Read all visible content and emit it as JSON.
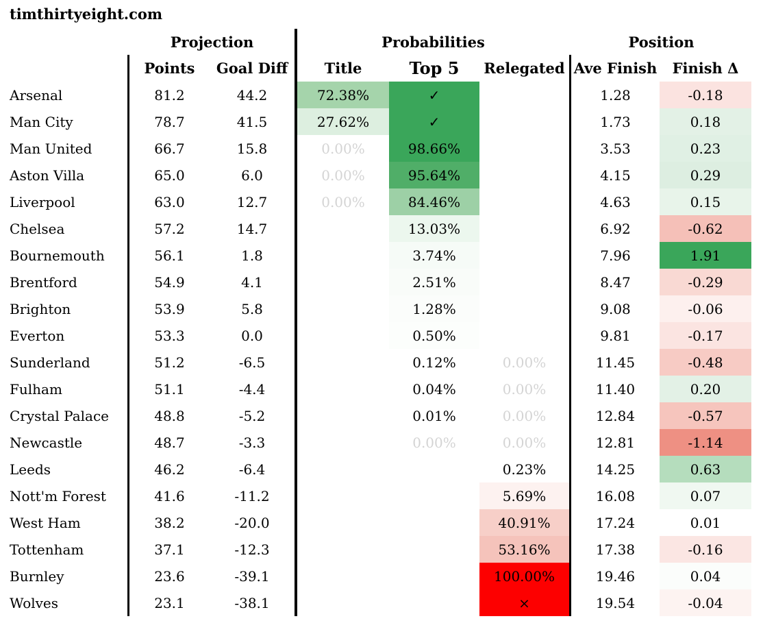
{
  "site_title": "timthirtyeight.com",
  "colors": {
    "strong_green": "#3aa65a",
    "strong_red": "#fd0000",
    "muted_zero_text": "#d4d4d4",
    "line_black": "#000000"
  },
  "chart_data": {
    "type": "table",
    "title": "timthirtyeight.com",
    "group_headers": [
      {
        "label": "Projection",
        "span": [
          "Points",
          "Goal Diff"
        ]
      },
      {
        "label": "Probabilities",
        "span": [
          "Title",
          "Top 5",
          "Relegated"
        ]
      },
      {
        "label": "Position",
        "span": [
          "Ave Finish",
          "Finish Δ"
        ]
      }
    ],
    "col_headers": [
      "Points",
      "Goal Diff",
      "Title",
      "Top 5",
      "Relegated",
      "Ave Finish",
      "Finish Δ"
    ],
    "rows": [
      {
        "team": "Arsenal",
        "cells": [
          {
            "col": "points",
            "text": "81.2"
          },
          {
            "col": "goal_diff",
            "text": "44.2"
          },
          {
            "col": "title",
            "text": "72.38%",
            "bg": "#a5d4ab"
          },
          {
            "col": "top5",
            "text": "✓",
            "bg": "#3aa65a"
          },
          {
            "col": "relegated",
            "text": ""
          },
          {
            "col": "ave_finish",
            "text": "1.28"
          },
          {
            "col": "finish_delta",
            "text": "-0.18",
            "bg": "#fbe3e0"
          }
        ]
      },
      {
        "team": "Man City",
        "cells": [
          {
            "col": "points",
            "text": "78.7"
          },
          {
            "col": "goal_diff",
            "text": "41.5"
          },
          {
            "col": "title",
            "text": "27.62%",
            "bg": "#ddefe0"
          },
          {
            "col": "top5",
            "text": "✓",
            "bg": "#3aa65a"
          },
          {
            "col": "relegated",
            "text": ""
          },
          {
            "col": "ave_finish",
            "text": "1.73"
          },
          {
            "col": "finish_delta",
            "text": "0.18",
            "bg": "#e3f1e6"
          }
        ]
      },
      {
        "team": "Man United",
        "cells": [
          {
            "col": "points",
            "text": "66.7"
          },
          {
            "col": "goal_diff",
            "text": "15.8"
          },
          {
            "col": "title",
            "text": "0.00%",
            "fg": "#d4d4d4"
          },
          {
            "col": "top5",
            "text": "98.66%",
            "bg": "#3aa65a"
          },
          {
            "col": "relegated",
            "text": ""
          },
          {
            "col": "ave_finish",
            "text": "3.53"
          },
          {
            "col": "finish_delta",
            "text": "0.23",
            "bg": "#e0f0e4"
          }
        ]
      },
      {
        "team": "Aston Villa",
        "cells": [
          {
            "col": "points",
            "text": "65.0"
          },
          {
            "col": "goal_diff",
            "text": "6.0"
          },
          {
            "col": "title",
            "text": "0.00%",
            "fg": "#d4d4d4"
          },
          {
            "col": "top5",
            "text": "95.64%",
            "bg": "#50ae68"
          },
          {
            "col": "relegated",
            "text": ""
          },
          {
            "col": "ave_finish",
            "text": "4.15"
          },
          {
            "col": "finish_delta",
            "text": "0.29",
            "bg": "#ddeee1"
          }
        ]
      },
      {
        "team": "Liverpool",
        "cells": [
          {
            "col": "points",
            "text": "63.0"
          },
          {
            "col": "goal_diff",
            "text": "12.7"
          },
          {
            "col": "title",
            "text": "0.00%",
            "fg": "#d4d4d4"
          },
          {
            "col": "top5",
            "text": "84.46%",
            "bg": "#9dd0a6"
          },
          {
            "col": "relegated",
            "text": ""
          },
          {
            "col": "ave_finish",
            "text": "4.63"
          },
          {
            "col": "finish_delta",
            "text": "0.15",
            "bg": "#e8f4ea"
          }
        ]
      },
      {
        "team": "Chelsea",
        "cells": [
          {
            "col": "points",
            "text": "57.2"
          },
          {
            "col": "goal_diff",
            "text": "14.7"
          },
          {
            "col": "title",
            "text": ""
          },
          {
            "col": "top5",
            "text": "13.03%",
            "bg": "#ecf7ee"
          },
          {
            "col": "relegated",
            "text": ""
          },
          {
            "col": "ave_finish",
            "text": "6.92"
          },
          {
            "col": "finish_delta",
            "text": "-0.62",
            "bg": "#f5c0b8"
          }
        ]
      },
      {
        "team": "Bournemouth",
        "cells": [
          {
            "col": "points",
            "text": "56.1"
          },
          {
            "col": "goal_diff",
            "text": "1.8"
          },
          {
            "col": "title",
            "text": ""
          },
          {
            "col": "top5",
            "text": "3.74%",
            "bg": "#f6fbf7"
          },
          {
            "col": "relegated",
            "text": ""
          },
          {
            "col": "ave_finish",
            "text": "7.96"
          },
          {
            "col": "finish_delta",
            "text": "1.91",
            "bg": "#3aa65a"
          }
        ]
      },
      {
        "team": "Brentford",
        "cells": [
          {
            "col": "points",
            "text": "54.9"
          },
          {
            "col": "goal_diff",
            "text": "4.1"
          },
          {
            "col": "title",
            "text": ""
          },
          {
            "col": "top5",
            "text": "2.51%",
            "bg": "#f9fcf9"
          },
          {
            "col": "relegated",
            "text": ""
          },
          {
            "col": "ave_finish",
            "text": "8.47"
          },
          {
            "col": "finish_delta",
            "text": "-0.29",
            "bg": "#f9d9d3"
          }
        ]
      },
      {
        "team": "Brighton",
        "cells": [
          {
            "col": "points",
            "text": "53.9"
          },
          {
            "col": "goal_diff",
            "text": "5.8"
          },
          {
            "col": "title",
            "text": ""
          },
          {
            "col": "top5",
            "text": "1.28%",
            "bg": "#fbfdfb"
          },
          {
            "col": "relegated",
            "text": ""
          },
          {
            "col": "ave_finish",
            "text": "9.08"
          },
          {
            "col": "finish_delta",
            "text": "-0.06",
            "bg": "#fdf0ee"
          }
        ]
      },
      {
        "team": "Everton",
        "cells": [
          {
            "col": "points",
            "text": "53.3"
          },
          {
            "col": "goal_diff",
            "text": "0.0"
          },
          {
            "col": "title",
            "text": ""
          },
          {
            "col": "top5",
            "text": "0.50%",
            "bg": "#fcfefc"
          },
          {
            "col": "relegated",
            "text": ""
          },
          {
            "col": "ave_finish",
            "text": "9.81"
          },
          {
            "col": "finish_delta",
            "text": "-0.17",
            "bg": "#fbe4e1"
          }
        ]
      },
      {
        "team": "Sunderland",
        "cells": [
          {
            "col": "points",
            "text": "51.2"
          },
          {
            "col": "goal_diff",
            "text": "-6.5"
          },
          {
            "col": "title",
            "text": ""
          },
          {
            "col": "top5",
            "text": "0.12%"
          },
          {
            "col": "relegated",
            "text": "0.00%",
            "fg": "#d4d4d4"
          },
          {
            "col": "ave_finish",
            "text": "11.45"
          },
          {
            "col": "finish_delta",
            "text": "-0.48",
            "bg": "#f7cbc4"
          }
        ]
      },
      {
        "team": "Fulham",
        "cells": [
          {
            "col": "points",
            "text": "51.1"
          },
          {
            "col": "goal_diff",
            "text": "-4.4"
          },
          {
            "col": "title",
            "text": ""
          },
          {
            "col": "top5",
            "text": "0.04%"
          },
          {
            "col": "relegated",
            "text": "0.00%",
            "fg": "#d4d4d4"
          },
          {
            "col": "ave_finish",
            "text": "11.40"
          },
          {
            "col": "finish_delta",
            "text": "0.20",
            "bg": "#e3f1e6"
          }
        ]
      },
      {
        "team": "Crystal Palace",
        "cells": [
          {
            "col": "points",
            "text": "48.8"
          },
          {
            "col": "goal_diff",
            "text": "-5.2"
          },
          {
            "col": "title",
            "text": ""
          },
          {
            "col": "top5",
            "text": "0.01%"
          },
          {
            "col": "relegated",
            "text": "0.00%",
            "fg": "#d4d4d4"
          },
          {
            "col": "ave_finish",
            "text": "12.84"
          },
          {
            "col": "finish_delta",
            "text": "-0.57",
            "bg": "#f6c5bd"
          }
        ]
      },
      {
        "team": "Newcastle",
        "cells": [
          {
            "col": "points",
            "text": "48.7"
          },
          {
            "col": "goal_diff",
            "text": "-3.3"
          },
          {
            "col": "title",
            "text": ""
          },
          {
            "col": "top5",
            "text": "0.00%",
            "fg": "#d4d4d4"
          },
          {
            "col": "relegated",
            "text": "0.00%",
            "fg": "#d4d4d4"
          },
          {
            "col": "ave_finish",
            "text": "12.81"
          },
          {
            "col": "finish_delta",
            "text": "-1.14",
            "bg": "#ee9083"
          }
        ]
      },
      {
        "team": "Leeds",
        "cells": [
          {
            "col": "points",
            "text": "46.2"
          },
          {
            "col": "goal_diff",
            "text": "-6.4"
          },
          {
            "col": "title",
            "text": ""
          },
          {
            "col": "top5",
            "text": ""
          },
          {
            "col": "relegated",
            "text": "0.23%"
          },
          {
            "col": "ave_finish",
            "text": "14.25"
          },
          {
            "col": "finish_delta",
            "text": "0.63",
            "bg": "#b5ddbd"
          }
        ]
      },
      {
        "team": "Nott'm Forest",
        "cells": [
          {
            "col": "points",
            "text": "41.6"
          },
          {
            "col": "goal_diff",
            "text": "-11.2"
          },
          {
            "col": "title",
            "text": ""
          },
          {
            "col": "top5",
            "text": ""
          },
          {
            "col": "relegated",
            "text": "5.69%",
            "bg": "#fdf2f0"
          },
          {
            "col": "ave_finish",
            "text": "16.08"
          },
          {
            "col": "finish_delta",
            "text": "0.07",
            "bg": "#f0f8f1"
          }
        ]
      },
      {
        "team": "West Ham",
        "cells": [
          {
            "col": "points",
            "text": "38.2"
          },
          {
            "col": "goal_diff",
            "text": "-20.0"
          },
          {
            "col": "title",
            "text": ""
          },
          {
            "col": "top5",
            "text": ""
          },
          {
            "col": "relegated",
            "text": "40.91%",
            "bg": "#f7cfc8"
          },
          {
            "col": "ave_finish",
            "text": "17.24"
          },
          {
            "col": "finish_delta",
            "text": "0.01"
          }
        ]
      },
      {
        "team": "Tottenham",
        "cells": [
          {
            "col": "points",
            "text": "37.1"
          },
          {
            "col": "goal_diff",
            "text": "-12.3"
          },
          {
            "col": "title",
            "text": ""
          },
          {
            "col": "top5",
            "text": ""
          },
          {
            "col": "relegated",
            "text": "53.16%",
            "bg": "#f5c3bb"
          },
          {
            "col": "ave_finish",
            "text": "17.38"
          },
          {
            "col": "finish_delta",
            "text": "-0.16",
            "bg": "#fbe6e3"
          }
        ]
      },
      {
        "team": "Burnley",
        "cells": [
          {
            "col": "points",
            "text": "23.6"
          },
          {
            "col": "goal_diff",
            "text": "-39.1"
          },
          {
            "col": "title",
            "text": ""
          },
          {
            "col": "top5",
            "text": ""
          },
          {
            "col": "relegated",
            "text": "100.00%",
            "bg": "#fd0000"
          },
          {
            "col": "ave_finish",
            "text": "19.46"
          },
          {
            "col": "finish_delta",
            "text": "0.04",
            "bg": "#fbfdfb"
          }
        ]
      },
      {
        "team": "Wolves",
        "cells": [
          {
            "col": "points",
            "text": "23.1"
          },
          {
            "col": "goal_diff",
            "text": "-38.1"
          },
          {
            "col": "title",
            "text": ""
          },
          {
            "col": "top5",
            "text": ""
          },
          {
            "col": "relegated",
            "text": "×",
            "bg": "#fd0000"
          },
          {
            "col": "ave_finish",
            "text": "19.54"
          },
          {
            "col": "finish_delta",
            "text": "-0.04",
            "bg": "#fdf3f1"
          }
        ]
      }
    ]
  }
}
